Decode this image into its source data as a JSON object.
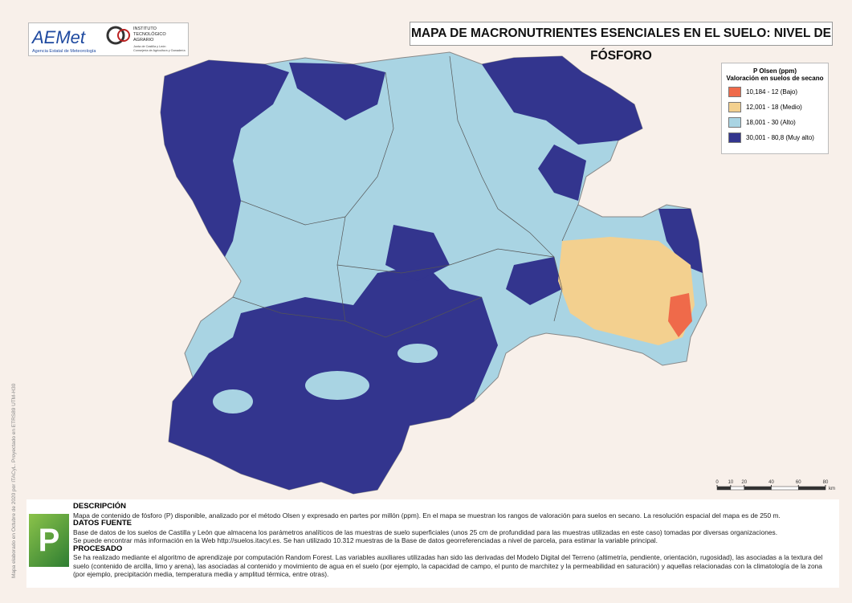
{
  "header": {
    "title": "MAPA DE MACRONUTRIENTES ESENCIALES EN EL SUELO: NIVEL DE FÓSFORO"
  },
  "logos": {
    "aemet": "AEMet",
    "aemet_sub": "Agencia Estatal de Meteorología",
    "itacyl": [
      "INSTITUTO",
      "TECNOLÓGICO",
      "AGRARIO"
    ],
    "itacyl_sub": [
      "Junta de Castilla y León",
      "Consejería de Agricultura y Ganadería"
    ]
  },
  "legend": {
    "title": "P Olsen (ppm)",
    "subtitle": "Valoración en suelos de secano",
    "items": [
      {
        "label": "10,184 - 12 (Bajo)",
        "color": "#ef6a4a"
      },
      {
        "label": "12,001 - 18 (Medio)",
        "color": "#f3d08f"
      },
      {
        "label": "18,001 - 30 (Alto)",
        "color": "#a9d4e3"
      },
      {
        "label": "30,001 - 80,8 (Muy alto)",
        "color": "#33358e"
      }
    ]
  },
  "scale": {
    "ticks": [
      0,
      10,
      20,
      40,
      60,
      80
    ],
    "unit": "km"
  },
  "side_note": "Mapa elaborado en Octubre de 2020 por ITACyL. Proyectado en ETRS89 UTM-H30",
  "badge": "P",
  "sections": [
    {
      "heading": "DESCRIPCIÓN",
      "lines": [
        "Mapa de contenido de fósforo (P) disponible, analizado por el método Olsen y expresado en partes por millón (ppm). En el mapa se muestran los rangos de valoración para suelos en secano. La resolución espacial del mapa es de 250 m."
      ]
    },
    {
      "heading": "DATOS FUENTE",
      "lines": [
        "Base de datos de los suelos de Castilla y León que almacena los parámetros analíticos de las muestras de suelo superficiales (unos 25 cm de profundidad para las muestras utilizadas en este caso) tomadas por diversas organizaciones.",
        "Se puede encontrar más información en la Web http://suelos.itacyl.es. Se han utilizado 10.312 muestras de la Base de datos georreferenciadas a nivel de parcela, para estimar la variable principal."
      ]
    },
    {
      "heading": "PROCESADO",
      "lines": [
        "Se ha realizado mediante el algoritmo de aprendizaje por computación Random Forest. Las variables auxiliares utilizadas han sido las derivadas del Modelo Digital del Terreno (altimetría, pendiente, orientación, rugosidad), las asociadas a la textura del suelo (contenido de arcilla, limo y arena), las asociadas al contenido y movimiento de agua en el suelo (por ejemplo, la capacidad de campo, el punto de marchitez y la permeabilidad en saturación) y aquellas relacionadas con la climatología de la zona (por ejemplo, precipitación media, temperatura media y amplitud térmica, entre otras)."
      ]
    }
  ]
}
